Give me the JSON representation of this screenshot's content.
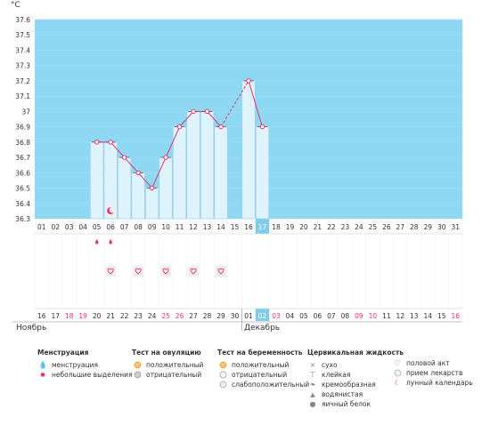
{
  "chart_data": {
    "type": "line",
    "ylabel": "°C",
    "ylim": [
      36.3,
      37.6
    ],
    "y_ticks": [
      36.3,
      36.4,
      36.5,
      36.6,
      36.7,
      36.8,
      36.9,
      37.0,
      37.1,
      37.2,
      37.3,
      37.4,
      37.5,
      37.6
    ],
    "y_tick_labels": [
      "36.3",
      "36.4",
      "36.5",
      "36.6",
      "36.7",
      "36.8",
      "36.9",
      "37",
      "37.1",
      "37.2",
      "37.3",
      "37.4",
      "37.5",
      "37.6"
    ],
    "cycle_days": [
      "01",
      "02",
      "03",
      "04",
      "05",
      "06",
      "07",
      "08",
      "09",
      "10",
      "11",
      "12",
      "13",
      "14",
      "15",
      "16",
      "17",
      "18",
      "19",
      "20",
      "21",
      "22",
      "23",
      "24",
      "25",
      "26",
      "27",
      "28",
      "29",
      "30",
      "31"
    ],
    "calendar_days": [
      "16",
      "17",
      "18",
      "19",
      "20",
      "21",
      "22",
      "23",
      "24",
      "25",
      "26",
      "27",
      "28",
      "29",
      "30",
      "01",
      "02",
      "03",
      "04",
      "05",
      "06",
      "07",
      "08",
      "09",
      "10",
      "11",
      "12",
      "13",
      "14",
      "15",
      "16"
    ],
    "calendar_red": [
      3,
      4,
      10,
      11,
      17,
      18,
      24,
      25,
      31
    ],
    "highlight_index": 17,
    "series": [
      {
        "values": [
          null,
          null,
          null,
          null,
          36.8,
          36.8,
          36.7,
          36.6,
          36.5,
          36.7,
          36.9,
          37.0,
          37.0,
          36.9,
          null,
          37.2,
          36.9,
          null,
          null,
          null,
          null,
          null,
          null,
          null,
          null,
          null,
          null,
          null,
          null,
          null,
          null
        ]
      }
    ],
    "dashed_segments": [
      [
        14,
        16
      ]
    ],
    "months": [
      {
        "label": "Ноябрь",
        "start_index": 1
      },
      {
        "label": "Декабрь",
        "start_index": 16
      }
    ],
    "moon_days": [
      6
    ],
    "menstruation_light_days": [
      5,
      6
    ],
    "intercourse_days": [
      6,
      8,
      10,
      12,
      14
    ]
  },
  "legend": [
    {
      "title": "Менструация",
      "items": [
        {
          "icon": "menstruation-icon",
          "label": "менструация"
        },
        {
          "icon": "light-discharge-icon",
          "label": "небольшие выделения"
        }
      ]
    },
    {
      "title": "Тест на овуляцию",
      "items": [
        {
          "icon": "positive-icon",
          "label": "положительный"
        },
        {
          "icon": "negative-icon",
          "label": "отрицательный"
        }
      ]
    },
    {
      "title": "Тест на беременность",
      "items": [
        {
          "icon": "positive-icon",
          "label": "положительный"
        },
        {
          "icon": "negative-icon",
          "label": "отрицательный"
        },
        {
          "icon": "weak-positive-icon",
          "label": "слабоположительный"
        }
      ]
    },
    {
      "title": "Цервикальная жидкость",
      "items": [
        {
          "icon": "dry-icon",
          "label": "сухо"
        },
        {
          "icon": "sticky-icon",
          "label": "клейкая"
        },
        {
          "icon": "creamy-icon",
          "label": "кремообразная"
        },
        {
          "icon": "watery-icon",
          "label": "водянистая"
        },
        {
          "icon": "egg-white-icon",
          "label": "яичный белок"
        }
      ]
    },
    {
      "title": "",
      "items": [
        {
          "icon": "heart-icon",
          "label": "половой акт"
        },
        {
          "icon": "pill-icon",
          "label": "прием лекарств"
        },
        {
          "icon": "moon-icon",
          "label": "лунный календарь"
        }
      ]
    }
  ],
  "colors": {
    "plot_bg": "#8fd8f4",
    "bar_fill": "#dff3fd",
    "bar_stroke": "#9fcde6",
    "line": "#e8336a",
    "highlight": "#7fcdea",
    "red_text": "#e8336a"
  }
}
